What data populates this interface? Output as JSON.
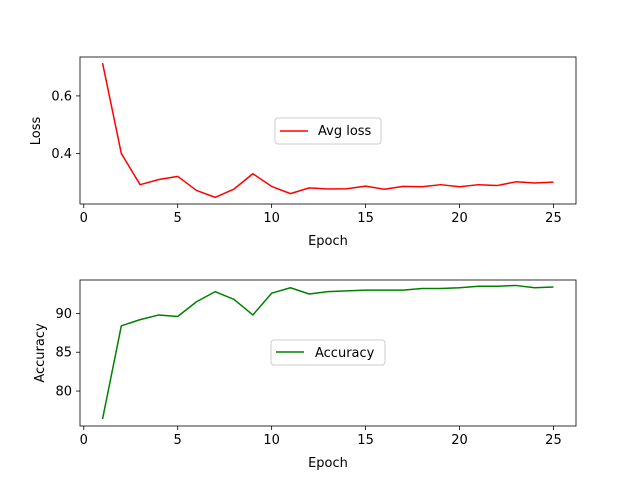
{
  "chart_data": [
    {
      "type": "line",
      "xlabel": "Epoch",
      "ylabel": "Loss",
      "xlim": [
        -0.2,
        26.2
      ],
      "ylim": [
        0.225,
        0.735
      ],
      "xticks": [
        0,
        5,
        10,
        15,
        20,
        25
      ],
      "yticks": [
        0.4,
        0.6
      ],
      "ytick_labels": [
        "0.4",
        "0.6"
      ],
      "legend_position": "center",
      "series": [
        {
          "name": "Avg loss",
          "color": "#ff0000",
          "x": [
            1,
            2,
            3,
            4,
            5,
            6,
            7,
            8,
            9,
            10,
            11,
            12,
            13,
            14,
            15,
            16,
            17,
            18,
            19,
            20,
            21,
            22,
            23,
            24,
            25
          ],
          "y": [
            0.714,
            0.4,
            0.292,
            0.31,
            0.321,
            0.272,
            0.248,
            0.277,
            0.33,
            0.286,
            0.261,
            0.281,
            0.277,
            0.278,
            0.287,
            0.276,
            0.286,
            0.285,
            0.292,
            0.285,
            0.292,
            0.289,
            0.302,
            0.298,
            0.301
          ]
        }
      ]
    },
    {
      "type": "line",
      "xlabel": "Epoch",
      "ylabel": "Accuracy",
      "xlim": [
        -0.2,
        26.2
      ],
      "ylim": [
        75.5,
        94.3
      ],
      "xticks": [
        0,
        5,
        10,
        15,
        20,
        25
      ],
      "yticks": [
        80,
        85,
        90
      ],
      "ytick_labels": [
        "80",
        "85",
        "90"
      ],
      "legend_position": "center",
      "series": [
        {
          "name": "Accuracy",
          "color": "#008000",
          "x": [
            1,
            2,
            3,
            4,
            5,
            6,
            7,
            8,
            9,
            10,
            11,
            12,
            13,
            14,
            15,
            16,
            17,
            18,
            19,
            20,
            21,
            22,
            23,
            24,
            25
          ],
          "y": [
            76.4,
            88.4,
            89.2,
            89.8,
            89.6,
            91.5,
            92.8,
            91.8,
            89.8,
            92.6,
            93.3,
            92.5,
            92.8,
            92.9,
            93.0,
            93.0,
            93.0,
            93.2,
            93.2,
            93.3,
            93.5,
            93.5,
            93.6,
            93.3,
            93.4
          ]
        }
      ]
    }
  ]
}
